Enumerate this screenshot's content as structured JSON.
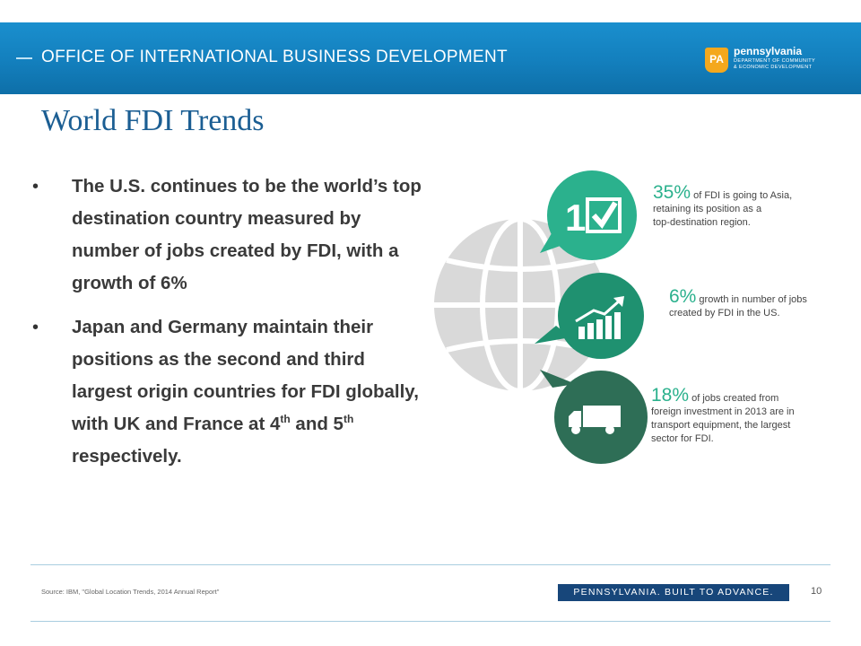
{
  "header": {
    "title": "OFFICE OF INTERNATIONAL BUSINESS DEVELOPMENT",
    "logo": {
      "badge": "PA",
      "name": "pennsylvania",
      "dept_line1": "DEPARTMENT OF COMMUNITY",
      "dept_line2": "& ECONOMIC DEVELOPMENT"
    },
    "colors": {
      "band": "#137fbd",
      "keystone": "#f4a81d"
    }
  },
  "slide": {
    "title": "World FDI Trends",
    "bullets": [
      {
        "text": "The U.S. continues to be the world’s top destination country measured by number of jobs created by FDI, with a growth of 6%"
      },
      {
        "text_a": "Japan and Germany maintain their positions as the second and third largest origin countries for FDI globally, with UK and France at 4",
        "sup_a": "th",
        "text_b": " and 5",
        "sup_b": "th",
        "text_c": " respectively."
      }
    ]
  },
  "infographic": {
    "colors": {
      "globe": "#d9d9d9",
      "item1": "#2bb18d",
      "item2": "#1f9170",
      "item3": "#2e6e56"
    },
    "items": [
      {
        "icon": "number-one-checkbox-icon",
        "pct": "35%",
        "line1": " of FDI is going to Asia,",
        "line2": "retaining its position as a",
        "line3": "top-destination region.",
        "line4": ""
      },
      {
        "icon": "growth-bar-chart-icon",
        "pct": "6%",
        "line1": " growth in number of jobs",
        "line2": "created by FDI in the US.",
        "line3": "",
        "line4": ""
      },
      {
        "icon": "truck-icon",
        "pct": "18%",
        "line1": " of jobs created from",
        "line2": "foreign investment in 2013 are in",
        "line3": "transport equipment, the largest",
        "line4": "sector for FDI."
      }
    ]
  },
  "footer": {
    "source": "Source: IBM, \"Global Location Trends, 2014 Annual Report\"",
    "tagline": "PENNSYLVANIA. BUILT TO ADVANCE.",
    "page_number": "10"
  }
}
